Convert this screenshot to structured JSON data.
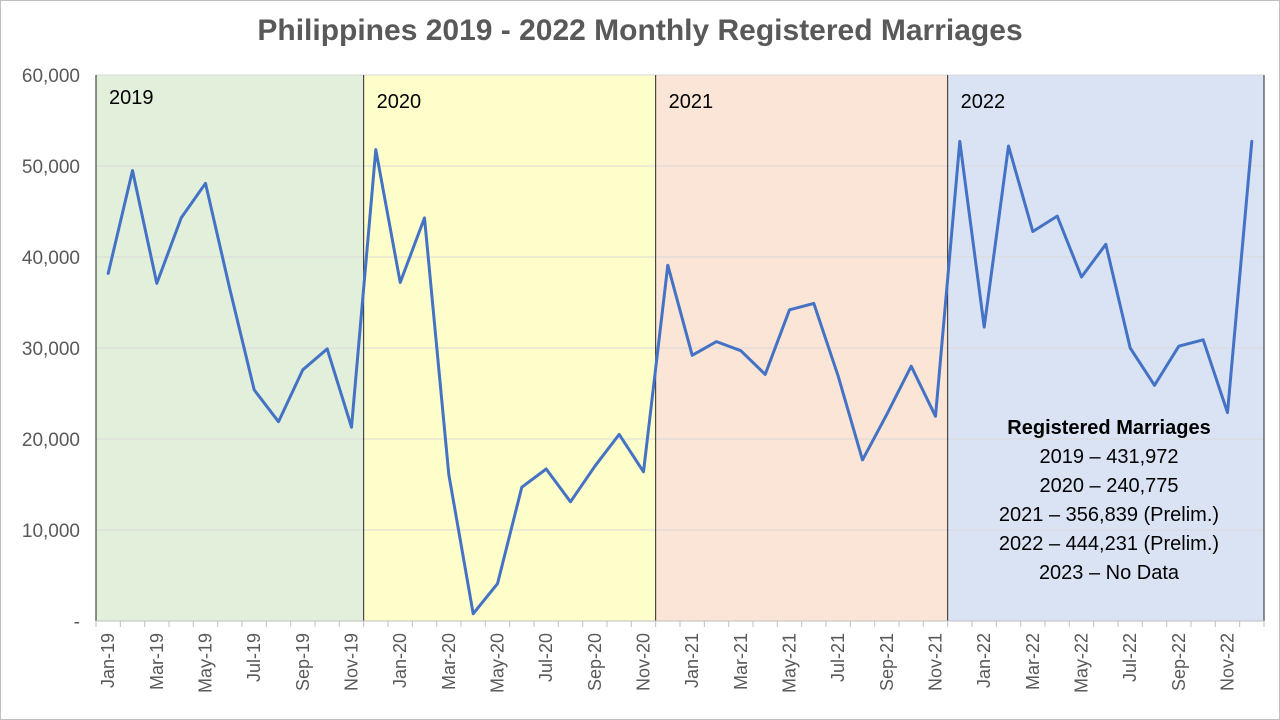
{
  "chart_data": {
    "type": "line",
    "title": "Philippines 2019 - 2022 Monthly Registered Marriages",
    "xlabel": "",
    "ylabel": "",
    "ylim": [
      0,
      60000
    ],
    "yticks": [
      0,
      10000,
      20000,
      30000,
      40000,
      50000,
      60000
    ],
    "ytick_labels": [
      "-",
      "10,000",
      "20,000",
      "30,000",
      "40,000",
      "50,000",
      "60,000"
    ],
    "grid": "horizontal",
    "line_color": "#4472c4",
    "x": [
      "Jan-19",
      "Feb-19",
      "Mar-19",
      "Apr-19",
      "May-19",
      "Jun-19",
      "Jul-19",
      "Aug-19",
      "Sep-19",
      "Oct-19",
      "Nov-19",
      "Dec-19",
      "Jan-20",
      "Feb-20",
      "Mar-20",
      "Apr-20",
      "May-20",
      "Jun-20",
      "Jul-20",
      "Aug-20",
      "Sep-20",
      "Oct-20",
      "Nov-20",
      "Dec-20",
      "Jan-21",
      "Feb-21",
      "Mar-21",
      "Apr-21",
      "May-21",
      "Jun-21",
      "Jul-21",
      "Aug-21",
      "Sep-21",
      "Oct-21",
      "Nov-21",
      "Dec-21",
      "Jan-22",
      "Feb-22",
      "Mar-22",
      "Apr-22",
      "May-22",
      "Jun-22",
      "Jul-22",
      "Aug-22",
      "Sep-22",
      "Oct-22",
      "Nov-22",
      "Dec-22"
    ],
    "xtick_labels": [
      "Jan-19",
      "Mar-19",
      "May-19",
      "Jul-19",
      "Sep-19",
      "Nov-19",
      "Jan-20",
      "Mar-20",
      "May-20",
      "Jul-20",
      "Sep-20",
      "Nov-20",
      "Jan-21",
      "Mar-21",
      "May-21",
      "Jul-21",
      "Sep-21",
      "Nov-21",
      "Jan-22",
      "Mar-22",
      "May-22",
      "Jul-22",
      "Sep-22",
      "Nov-22"
    ],
    "series": [
      {
        "values": [
          38200,
          49500,
          37100,
          44300,
          48100,
          36500,
          25400,
          21900,
          27600,
          29900,
          21300,
          51800,
          37200,
          44300,
          16100,
          800,
          4100,
          14700,
          16700,
          13100,
          17000,
          20500,
          16400,
          39100,
          29200,
          30700,
          29700,
          27100,
          34200,
          34900,
          26900,
          17700,
          22700,
          28000,
          22500,
          52700,
          32300,
          52200,
          42800,
          44500,
          37800,
          41400,
          30000,
          25900,
          30200,
          30900,
          22900,
          52700
        ]
      }
    ],
    "bands": [
      {
        "label": "2019",
        "start": 0,
        "end": 11,
        "color": "#e2efda"
      },
      {
        "label": "2020",
        "start": 11,
        "end": 23,
        "color": "#fefecb"
      },
      {
        "label": "2021",
        "start": 23,
        "end": 35,
        "color": "#fbe5d6"
      },
      {
        "label": "2022",
        "start": 35,
        "end": 48,
        "color": "#dae3f3"
      }
    ],
    "annotation": {
      "title": "Registered Marriages",
      "lines": [
        "2019 – 431,972",
        "2020 – 240,775",
        "2021 – 356,839 (Prelim.)",
        "2022 – 444,231 (Prelim.)",
        "2023 – No Data"
      ]
    }
  }
}
